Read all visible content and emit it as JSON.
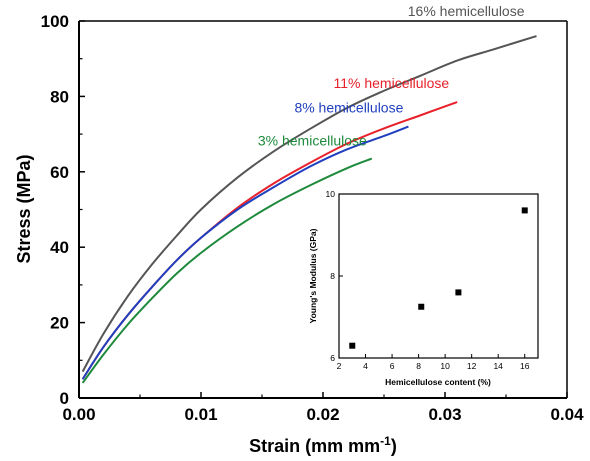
{
  "chart_data": [
    {
      "type": "line",
      "title": "",
      "xlabel": "Strain (mm mm",
      "xlabel_sup": "-1",
      "xlabel_end": ")",
      "ylabel": "Stress (MPa)",
      "xlim": [
        0.0,
        0.04
      ],
      "ylim": [
        0,
        100
      ],
      "x_ticks": [
        "0.00",
        "0.01",
        "0.02",
        "0.03",
        "0.04"
      ],
      "y_ticks": [
        "0",
        "20",
        "40",
        "60",
        "80",
        "100"
      ],
      "grid": false,
      "series": [
        {
          "name": "16% hemicellulose",
          "color": "#555555",
          "x": [
            0.0003,
            0.002,
            0.004,
            0.006,
            0.008,
            0.01,
            0.013,
            0.016,
            0.019,
            0.022,
            0.025,
            0.028,
            0.031,
            0.034,
            0.0375
          ],
          "y": [
            7,
            17,
            27,
            35.5,
            43,
            50,
            58.5,
            65.5,
            71.5,
            77,
            81.5,
            85.5,
            89.5,
            92.5,
            96
          ]
        },
        {
          "name": "11% hemicellulose",
          "color": "#e8202a",
          "x": [
            0.0003,
            0.002,
            0.004,
            0.006,
            0.008,
            0.01,
            0.013,
            0.016,
            0.019,
            0.022,
            0.025,
            0.028,
            0.031
          ],
          "y": [
            5,
            13.5,
            22,
            29.5,
            36.5,
            42.5,
            50.5,
            57,
            62.5,
            67.5,
            71.5,
            75,
            78.5
          ]
        },
        {
          "name": "8% hemicellulose",
          "color": "#1f3fbf",
          "x": [
            0.0003,
            0.002,
            0.004,
            0.006,
            0.008,
            0.01,
            0.013,
            0.016,
            0.019,
            0.022,
            0.025,
            0.027
          ],
          "y": [
            5,
            13.5,
            22,
            29.5,
            36.5,
            42.5,
            50,
            56,
            61.5,
            66,
            69.5,
            72
          ]
        },
        {
          "name": "3% hemicellulose",
          "color": "#1e8a3c",
          "x": [
            0.0003,
            0.002,
            0.004,
            0.006,
            0.008,
            0.01,
            0.013,
            0.016,
            0.019,
            0.022,
            0.024
          ],
          "y": [
            4,
            11.5,
            19.5,
            26.5,
            33,
            38.5,
            45.5,
            51.5,
            56.5,
            61,
            63.5
          ]
        }
      ]
    },
    {
      "type": "scatter",
      "title": "",
      "xlabel": "Hemicellulose content (%)",
      "ylabel": "Young's Modulus (GPa)",
      "xlim": [
        2,
        17
      ],
      "ylim": [
        6,
        10
      ],
      "x_ticks": [
        "2",
        "4",
        "6",
        "8",
        "10",
        "12",
        "14",
        "16"
      ],
      "y_ticks": [
        "6",
        "8",
        "10"
      ],
      "marker": "square",
      "series": [
        {
          "x": [
            3,
            8.2,
            11,
            16
          ],
          "y": [
            6.3,
            7.25,
            7.6,
            9.6
          ]
        }
      ]
    }
  ]
}
